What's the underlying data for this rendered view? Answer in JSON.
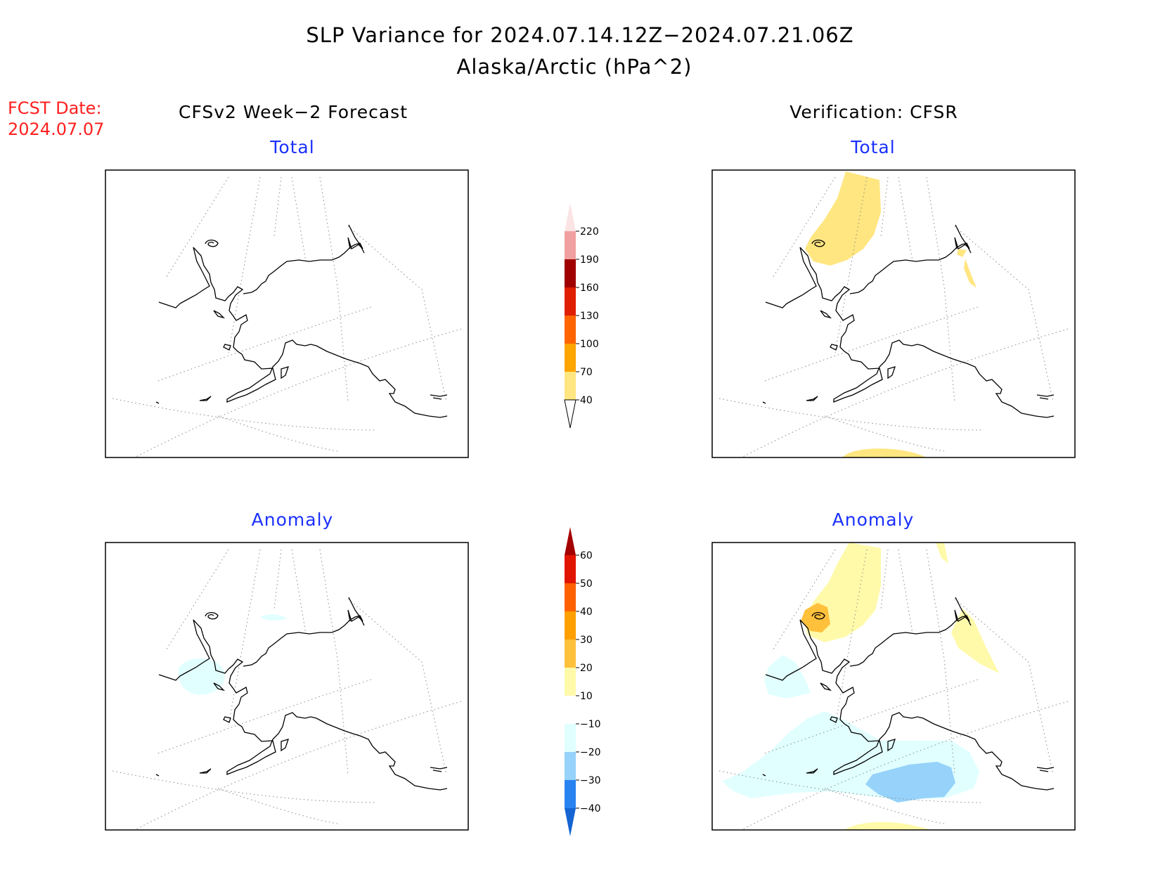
{
  "title": {
    "line1": "SLP Variance for 2024.07.14.12Z−2024.07.21.06Z",
    "line2": "Alaska/Arctic (hPa^2)"
  },
  "fcst_date": {
    "label": "FCST Date:",
    "value": "2024.07.07"
  },
  "columns": {
    "left": "CFSv2 Week−2 Forecast",
    "right": "Verification: CFSR"
  },
  "panels": [
    {
      "id": "forecast-total",
      "subtitle": "Total"
    },
    {
      "id": "verification-total",
      "subtitle": "Total"
    },
    {
      "id": "forecast-anomaly",
      "subtitle": "Anomaly"
    },
    {
      "id": "verification-anomaly",
      "subtitle": "Anomaly"
    }
  ],
  "colorbars": {
    "total": {
      "levels": [
        "40",
        "70",
        "100",
        "130",
        "160",
        "190",
        "220"
      ],
      "colors": [
        "#ffe680",
        "#ffa500",
        "#ff6400",
        "#e01e00",
        "#a00000",
        "#f0a0a0",
        "#fce4e4"
      ]
    },
    "anomaly": {
      "levels": [
        "−40",
        "−30",
        "−20",
        "−10",
        "10",
        "20",
        "30",
        "40",
        "50",
        "60"
      ],
      "colors": [
        "#1464d2",
        "#2882f0",
        "#96d2fa",
        "#e1ffff",
        "#ffffff",
        "#fffaaa",
        "#ffc03c",
        "#ffa000",
        "#ff6000",
        "#e11400",
        "#a50000"
      ]
    }
  },
  "colors": {
    "title_text": "#000000",
    "fcst_text": "#ff2020",
    "subtitle_text": "#1a30ff",
    "coastline": "#000000",
    "graticule": "#888888"
  }
}
